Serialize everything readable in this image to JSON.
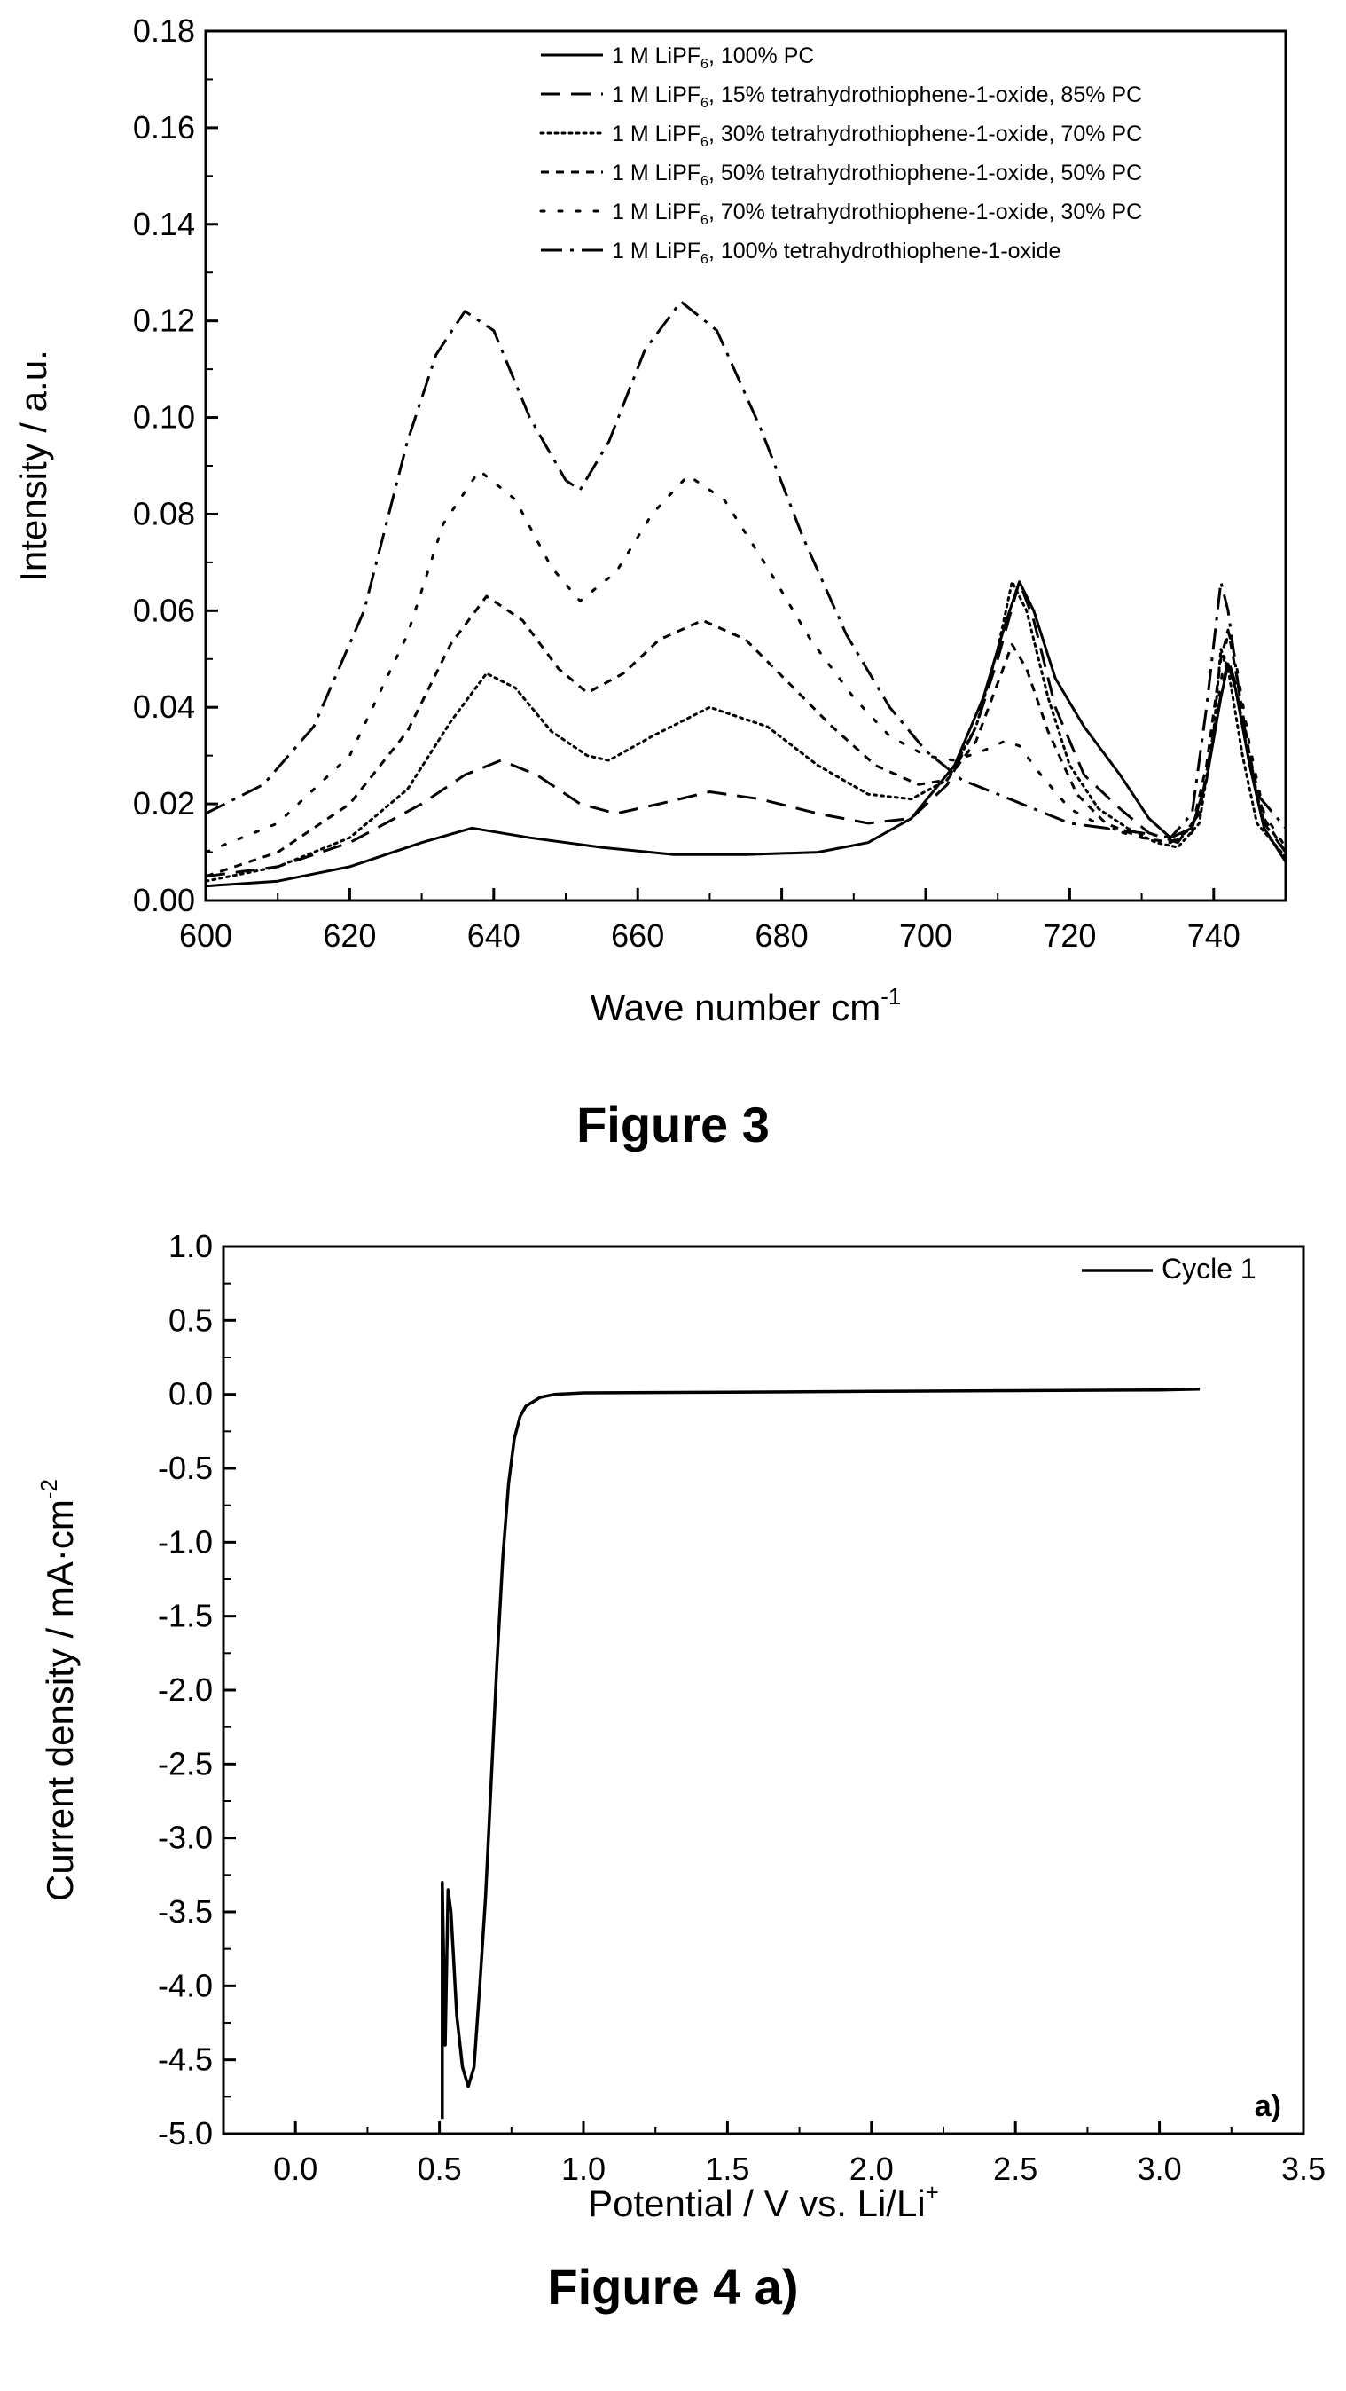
{
  "figure3": {
    "caption": "Figure 3",
    "chart_data": {
      "type": "line",
      "xlabel": "Wave number cm",
      "xlabel_sup": "-1",
      "ylabel": "Intensity / a.u.",
      "xlim": [
        600,
        750
      ],
      "ylim": [
        0.0,
        0.18
      ],
      "x_ticks": [
        600,
        620,
        640,
        660,
        680,
        700,
        720,
        740
      ],
      "x_tick_labels": [
        "600",
        "620",
        "640",
        "660",
        "680",
        "700",
        "720",
        "740"
      ],
      "y_ticks": [
        0.0,
        0.02,
        0.04,
        0.06,
        0.08,
        0.1,
        0.12,
        0.14,
        0.16,
        0.18
      ],
      "y_tick_labels": [
        "0.00",
        "0.02",
        "0.04",
        "0.06",
        "0.08",
        "0.10",
        "0.12",
        "0.14",
        "0.16",
        "0.18"
      ],
      "legend_position": "top-right",
      "grid": false,
      "series": [
        {
          "name": "1 M LiPF6, 100% PC",
          "name_parts": [
            "1 M LiPF",
            "6",
            ", 100% PC"
          ],
          "dash": "solid",
          "points": [
            [
              600,
              0.003
            ],
            [
              610,
              0.004
            ],
            [
              620,
              0.007
            ],
            [
              630,
              0.012
            ],
            [
              637,
              0.015
            ],
            [
              645,
              0.013
            ],
            [
              655,
              0.011
            ],
            [
              665,
              0.0095
            ],
            [
              675,
              0.0095
            ],
            [
              685,
              0.01
            ],
            [
              692,
              0.012
            ],
            [
              698,
              0.017
            ],
            [
              704,
              0.028
            ],
            [
              708,
              0.042
            ],
            [
              711,
              0.057
            ],
            [
              713,
              0.066
            ],
            [
              715,
              0.06
            ],
            [
              718,
              0.046
            ],
            [
              722,
              0.036
            ],
            [
              727,
              0.026
            ],
            [
              731,
              0.017
            ],
            [
              734,
              0.013
            ],
            [
              737,
              0.015
            ],
            [
              739,
              0.025
            ],
            [
              741,
              0.042
            ],
            [
              742,
              0.049
            ],
            [
              743,
              0.044
            ],
            [
              745,
              0.028
            ],
            [
              747,
              0.015
            ],
            [
              750,
              0.008
            ]
          ]
        },
        {
          "name": "1 M LiPF6, 15% tetrahydrothiophene-1-oxide, 85% PC",
          "name_parts": [
            "1 M LiPF",
            "6",
            ", 15% tetrahydrothiophene-1-oxide, 85% PC"
          ],
          "dash": "dash",
          "points": [
            [
              600,
              0.005
            ],
            [
              610,
              0.007
            ],
            [
              620,
              0.012
            ],
            [
              630,
              0.02
            ],
            [
              636,
              0.026
            ],
            [
              641,
              0.029
            ],
            [
              646,
              0.026
            ],
            [
              652,
              0.02
            ],
            [
              657,
              0.018
            ],
            [
              663,
              0.02
            ],
            [
              670,
              0.0225
            ],
            [
              677,
              0.021
            ],
            [
              685,
              0.018
            ],
            [
              692,
              0.016
            ],
            [
              698,
              0.017
            ],
            [
              703,
              0.024
            ],
            [
              707,
              0.036
            ],
            [
              710,
              0.05
            ],
            [
              713,
              0.066
            ],
            [
              715,
              0.058
            ],
            [
              718,
              0.04
            ],
            [
              722,
              0.026
            ],
            [
              727,
              0.019
            ],
            [
              731,
              0.014
            ],
            [
              735,
              0.012
            ],
            [
              738,
              0.018
            ],
            [
              740,
              0.035
            ],
            [
              742,
              0.05
            ],
            [
              743,
              0.045
            ],
            [
              745,
              0.028
            ],
            [
              747,
              0.016
            ],
            [
              750,
              0.01
            ]
          ]
        },
        {
          "name": "1 M LiPF6, 30% tetrahydrothiophene-1-oxide, 70% PC",
          "name_parts": [
            "1 M LiPF",
            "6",
            ", 30% tetrahydrothiophene-1-oxide, 70% PC"
          ],
          "dash": "dot",
          "points": [
            [
              600,
              0.004
            ],
            [
              610,
              0.007
            ],
            [
              620,
              0.013
            ],
            [
              628,
              0.023
            ],
            [
              634,
              0.037
            ],
            [
              639,
              0.047
            ],
            [
              643,
              0.044
            ],
            [
              648,
              0.035
            ],
            [
              653,
              0.03
            ],
            [
              656,
              0.029
            ],
            [
              662,
              0.034
            ],
            [
              670,
              0.04
            ],
            [
              678,
              0.036
            ],
            [
              685,
              0.028
            ],
            [
              692,
              0.022
            ],
            [
              698,
              0.021
            ],
            [
              703,
              0.025
            ],
            [
              707,
              0.036
            ],
            [
              710,
              0.052
            ],
            [
              712,
              0.066
            ],
            [
              714,
              0.06
            ],
            [
              717,
              0.042
            ],
            [
              720,
              0.028
            ],
            [
              724,
              0.019
            ],
            [
              728,
              0.015
            ],
            [
              732,
              0.012
            ],
            [
              735,
              0.011
            ],
            [
              738,
              0.016
            ],
            [
              740,
              0.035
            ],
            [
              741,
              0.052
            ],
            [
              742,
              0.048
            ],
            [
              744,
              0.03
            ],
            [
              746,
              0.016
            ],
            [
              750,
              0.009
            ]
          ]
        },
        {
          "name": "1 M LiPF6, 50% tetrahydrothiophene-1-oxide, 50% PC",
          "name_parts": [
            "1 M LiPF",
            "6",
            ", 50% tetrahydrothiophene-1-oxide, 50% PC"
          ],
          "dash": "shortdash",
          "points": [
            [
              600,
              0.005
            ],
            [
              610,
              0.01
            ],
            [
              620,
              0.02
            ],
            [
              628,
              0.035
            ],
            [
              634,
              0.053
            ],
            [
              639,
              0.063
            ],
            [
              644,
              0.058
            ],
            [
              649,
              0.048
            ],
            [
              653,
              0.043
            ],
            [
              658,
              0.047
            ],
            [
              663,
              0.054
            ],
            [
              669,
              0.058
            ],
            [
              675,
              0.054
            ],
            [
              681,
              0.045
            ],
            [
              687,
              0.036
            ],
            [
              693,
              0.028
            ],
            [
              699,
              0.024
            ],
            [
              703,
              0.025
            ],
            [
              707,
              0.033
            ],
            [
              710,
              0.045
            ],
            [
              712,
              0.053
            ],
            [
              714,
              0.048
            ],
            [
              717,
              0.035
            ],
            [
              721,
              0.022
            ],
            [
              725,
              0.016
            ],
            [
              730,
              0.013
            ],
            [
              734,
              0.012
            ],
            [
              737,
              0.015
            ],
            [
              739,
              0.028
            ],
            [
              741,
              0.05
            ],
            [
              742,
              0.056
            ],
            [
              743,
              0.048
            ],
            [
              745,
              0.03
            ],
            [
              747,
              0.017
            ],
            [
              750,
              0.01
            ]
          ]
        },
        {
          "name": "1 M LiPF6, 70% tetrahydrothiophene-1-oxide, 30% PC",
          "name_parts": [
            "1 M LiPF",
            "6",
            ", 70% tetrahydrothiophene-1-oxide, 30% PC"
          ],
          "dash": "sparsedot",
          "points": [
            [
              600,
              0.01
            ],
            [
              610,
              0.016
            ],
            [
              620,
              0.03
            ],
            [
              628,
              0.055
            ],
            [
              633,
              0.078
            ],
            [
              638,
              0.089
            ],
            [
              643,
              0.083
            ],
            [
              648,
              0.069
            ],
            [
              652,
              0.062
            ],
            [
              657,
              0.068
            ],
            [
              662,
              0.08
            ],
            [
              667,
              0.088
            ],
            [
              672,
              0.083
            ],
            [
              678,
              0.069
            ],
            [
              684,
              0.054
            ],
            [
              690,
              0.042
            ],
            [
              695,
              0.034
            ],
            [
              700,
              0.03
            ],
            [
              704,
              0.029
            ],
            [
              708,
              0.031
            ],
            [
              711,
              0.033
            ],
            [
              713,
              0.032
            ],
            [
              716,
              0.026
            ],
            [
              720,
              0.019
            ],
            [
              725,
              0.015
            ],
            [
              730,
              0.013
            ],
            [
              734,
              0.012
            ],
            [
              737,
              0.014
            ],
            [
              739,
              0.025
            ],
            [
              741,
              0.045
            ],
            [
              742,
              0.056
            ],
            [
              743,
              0.05
            ],
            [
              745,
              0.032
            ],
            [
              747,
              0.018
            ],
            [
              750,
              0.011
            ]
          ]
        },
        {
          "name": "1 M LiPF6, 100% tetrahydrothiophene-1-oxide",
          "name_parts": [
            "1 M LiPF",
            "6",
            ", 100% tetrahydrothiophene-1-oxide"
          ],
          "dash": "dashdot",
          "points": [
            [
              600,
              0.018
            ],
            [
              608,
              0.024
            ],
            [
              615,
              0.036
            ],
            [
              622,
              0.06
            ],
            [
              628,
              0.095
            ],
            [
              632,
              0.113
            ],
            [
              636,
              0.122
            ],
            [
              640,
              0.118
            ],
            [
              645,
              0.1
            ],
            [
              650,
              0.087
            ],
            [
              652,
              0.085
            ],
            [
              656,
              0.095
            ],
            [
              661,
              0.114
            ],
            [
              666,
              0.124
            ],
            [
              671,
              0.118
            ],
            [
              677,
              0.098
            ],
            [
              683,
              0.075
            ],
            [
              689,
              0.055
            ],
            [
              695,
              0.04
            ],
            [
              700,
              0.031
            ],
            [
              705,
              0.025
            ],
            [
              710,
              0.022
            ],
            [
              715,
              0.019
            ],
            [
              720,
              0.016
            ],
            [
              725,
              0.015
            ],
            [
              730,
              0.014
            ],
            [
              734,
              0.013
            ],
            [
              737,
              0.018
            ],
            [
              739,
              0.04
            ],
            [
              741,
              0.066
            ],
            [
              742,
              0.06
            ],
            [
              744,
              0.038
            ],
            [
              746,
              0.022
            ],
            [
              750,
              0.015
            ]
          ]
        }
      ]
    }
  },
  "figure4": {
    "caption": "Figure 4 a)",
    "panel_label": "a)",
    "chart_data": {
      "type": "line",
      "xlabel": "Potential / V vs. Li/Li",
      "xlabel_sup": "+",
      "ylabel": "Current density / mA·cm",
      "ylabel_sup": "-2",
      "xlim": [
        -0.25,
        3.5
      ],
      "ylim": [
        -5.0,
        1.0
      ],
      "x_ticks": [
        0.0,
        0.5,
        1.0,
        1.5,
        2.0,
        2.5,
        3.0,
        3.5
      ],
      "x_tick_labels": [
        "0.0",
        "0.5",
        "1.0",
        "1.5",
        "2.0",
        "2.5",
        "3.0",
        "3.5"
      ],
      "y_ticks": [
        1.0,
        0.5,
        0.0,
        -0.5,
        -1.0,
        -1.5,
        -2.0,
        -2.5,
        -3.0,
        -3.5,
        -4.0,
        -4.5,
        -5.0
      ],
      "y_tick_labels": [
        "1.0",
        "0.5",
        "0.0",
        "-0.5",
        "-1.0",
        "-1.5",
        "-2.0",
        "-2.5",
        "-3.0",
        "-3.5",
        "-4.0",
        "-4.5",
        "-5.0"
      ],
      "legend_position": "top-right",
      "grid": false,
      "series": [
        {
          "name": "Cycle 1",
          "dash": "solid",
          "points": [
            [
              0.51,
              -4.9
            ],
            [
              0.51,
              -3.3
            ],
            [
              0.52,
              -4.4
            ],
            [
              0.53,
              -3.35
            ],
            [
              0.54,
              -3.5
            ],
            [
              0.56,
              -4.2
            ],
            [
              0.58,
              -4.55
            ],
            [
              0.6,
              -4.68
            ],
            [
              0.62,
              -4.55
            ],
            [
              0.64,
              -4.0
            ],
            [
              0.66,
              -3.4
            ],
            [
              0.68,
              -2.6
            ],
            [
              0.7,
              -1.8
            ],
            [
              0.72,
              -1.1
            ],
            [
              0.74,
              -0.6
            ],
            [
              0.76,
              -0.3
            ],
            [
              0.78,
              -0.15
            ],
            [
              0.8,
              -0.08
            ],
            [
              0.85,
              -0.02
            ],
            [
              0.9,
              0.0
            ],
            [
              1.0,
              0.01
            ],
            [
              1.5,
              0.015
            ],
            [
              2.0,
              0.02
            ],
            [
              2.5,
              0.025
            ],
            [
              3.0,
              0.03
            ],
            [
              3.14,
              0.035
            ]
          ]
        }
      ]
    }
  }
}
